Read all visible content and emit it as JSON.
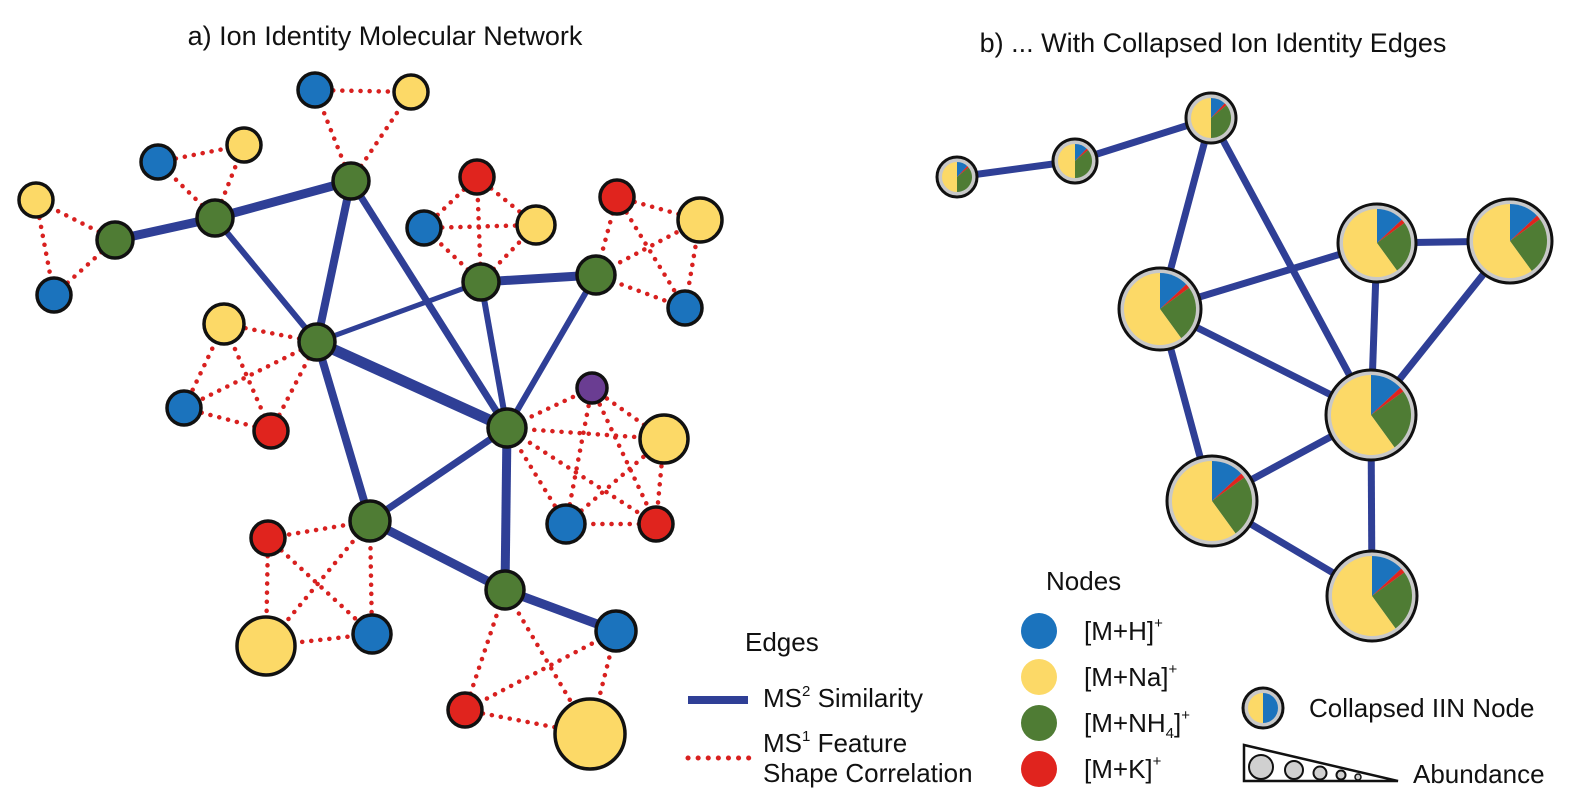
{
  "titles": {
    "panel_a": "a) Ion Identity Molecular Network",
    "panel_b": "b) ... With Collapsed Ion Identity Edges"
  },
  "colors": {
    "blue_edge": "#2f3f96",
    "corr_edge": "#d8201f",
    "ion_h": "#1b73bd",
    "ion_na": "#fcd967",
    "ion_nh4": "#4f7c34",
    "ion_k": "#e0241e",
    "other": "#6a3d92",
    "pie_ring": "#c8c8c8",
    "outline": "#111111"
  },
  "legend": {
    "edges_heading": "Edges",
    "ms2_label_prefix": "MS",
    "ms2_label_sup": "2",
    "ms2_label_suffix": " Similarity",
    "ms1_label_prefix": "MS",
    "ms1_label_sup": "1",
    "ms1_label_suffix": " Feature",
    "ms1_label_line2": "Shape Correlation",
    "nodes_heading": "Nodes",
    "ion_h_base": "[M+H]",
    "ion_na_base": "[M+Na]",
    "ion_nh4_base": "[M+NH",
    "ion_nh4_sub": "4",
    "ion_nh4_close": "]",
    "ion_k_base": "[M+K]",
    "plus": "+",
    "collapsed_label": "Collapsed IIN Node",
    "abundance_label": "Abundance"
  }
}
